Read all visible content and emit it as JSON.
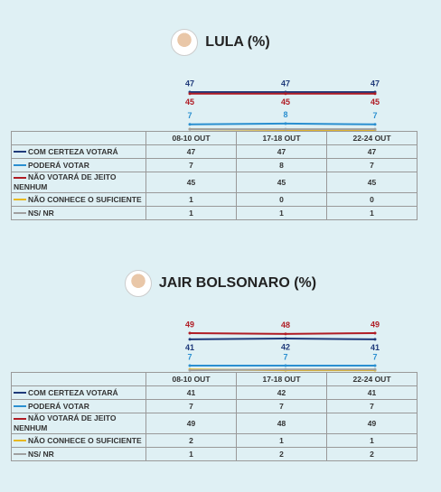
{
  "chart_data": [
    {
      "type": "line",
      "title": "LULA (%)",
      "categories": [
        "08-10 OUT",
        "17-18 OUT",
        "22-24 OUT"
      ],
      "series": [
        {
          "name": "COM CERTEZA VOTARÁ",
          "color": "#1f3a7a",
          "values": [
            47,
            47,
            47
          ]
        },
        {
          "name": "PODERÁ VOTAR",
          "color": "#2a8fd0",
          "values": [
            7,
            8,
            7
          ]
        },
        {
          "name": "NÃO VOTARÁ DE JEITO NENHUM",
          "color": "#b01c24",
          "values": [
            45,
            45,
            45
          ]
        },
        {
          "name": "NÃO CONHECE O SUFICIENTE",
          "color": "#e8b820",
          "values": [
            1,
            0,
            0
          ]
        },
        {
          "name": "NS/ NR",
          "color": "#a0a0a0",
          "values": [
            1,
            1,
            1
          ]
        }
      ]
    },
    {
      "type": "line",
      "title": "JAIR BOLSONARO (%)",
      "categories": [
        "08-10 OUT",
        "17-18 OUT",
        "22-24 OUT"
      ],
      "series": [
        {
          "name": "COM CERTEZA VOTARÁ",
          "color": "#1f3a7a",
          "values": [
            41,
            42,
            41
          ]
        },
        {
          "name": "PODERÁ VOTAR",
          "color": "#2a8fd0",
          "values": [
            7,
            7,
            7
          ]
        },
        {
          "name": "NÃO VOTARÁ DE JEITO NENHUM",
          "color": "#b01c24",
          "values": [
            49,
            48,
            49
          ]
        },
        {
          "name": "NÃO CONHECE O SUFICIENTE",
          "color": "#e8b820",
          "values": [
            2,
            1,
            1
          ]
        },
        {
          "name": "NS/ NR",
          "color": "#a0a0a0",
          "values": [
            1,
            2,
            2
          ]
        }
      ]
    }
  ]
}
